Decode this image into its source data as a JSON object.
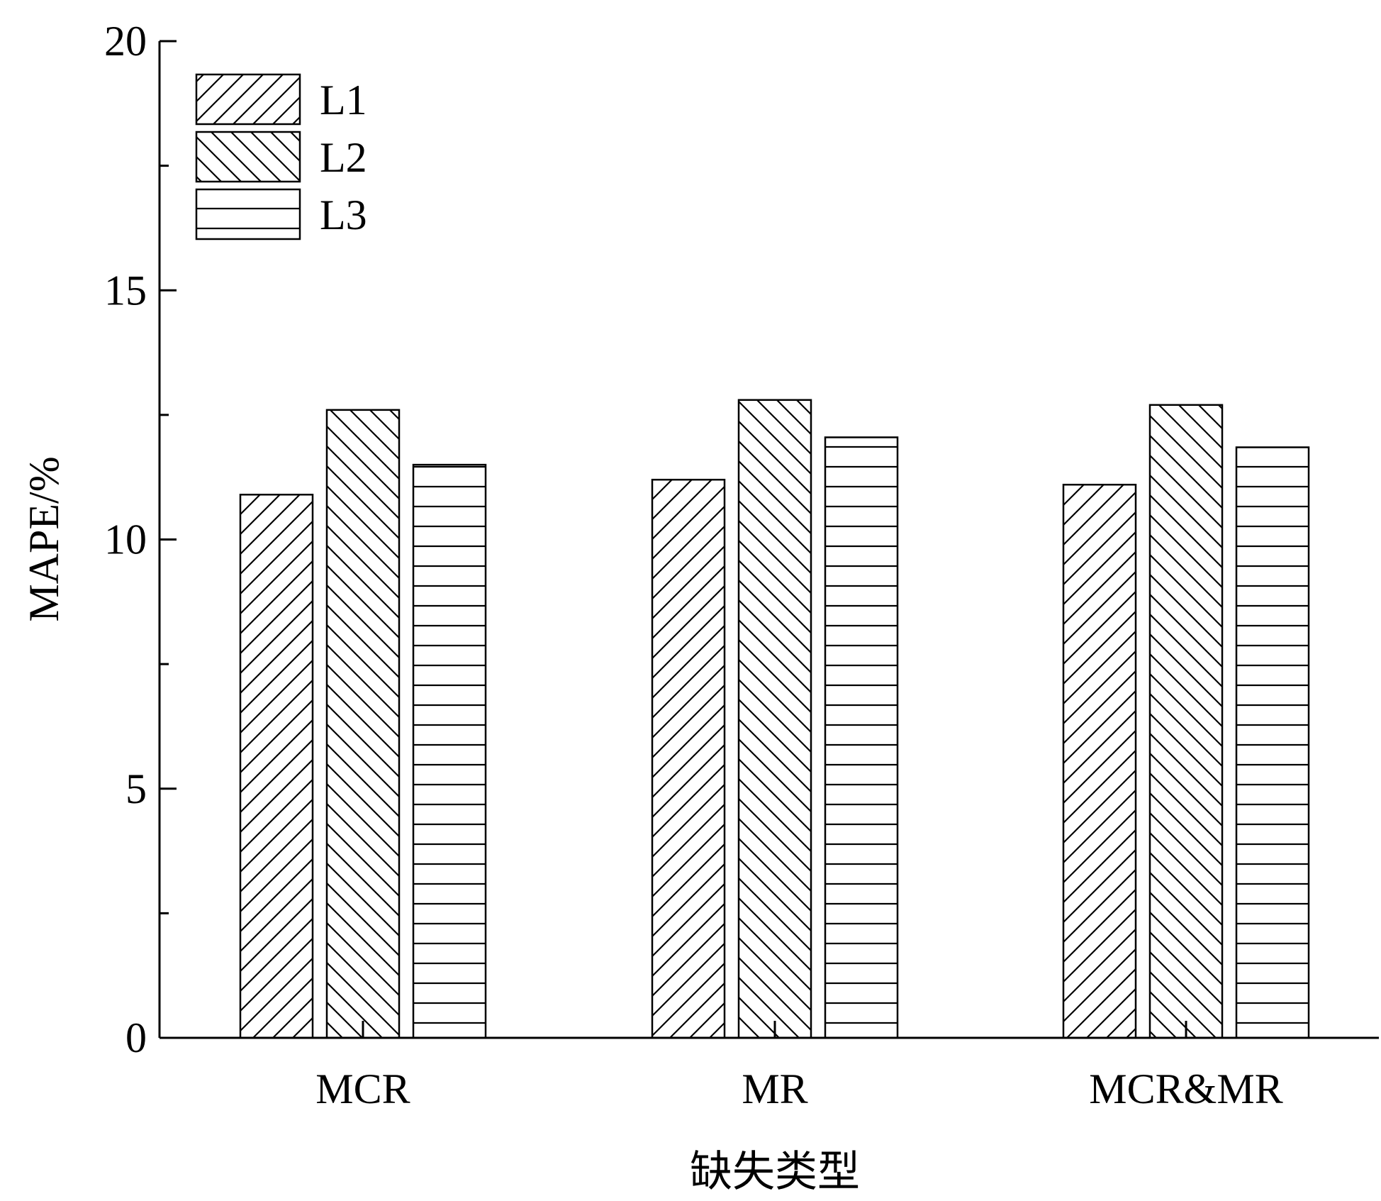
{
  "chart_data": {
    "type": "bar",
    "categories": [
      "MCR",
      "MR",
      "MCR&MR"
    ],
    "series": [
      {
        "name": "L1",
        "values": [
          10.9,
          11.2,
          11.1
        ],
        "pattern": "diagonal-up"
      },
      {
        "name": "L2",
        "values": [
          12.6,
          12.8,
          12.7
        ],
        "pattern": "diagonal-down"
      },
      {
        "name": "L3",
        "values": [
          11.5,
          12.05,
          11.85
        ],
        "pattern": "horizontal"
      }
    ],
    "xlabel": "缺失类型",
    "ylabel": "MAPE/%",
    "ylim": [
      0,
      20
    ],
    "yticks": [
      "0",
      "5",
      "10",
      "15",
      "20"
    ],
    "grid": false,
    "legend_position": "top-left",
    "colors": {
      "stroke": "#000000",
      "fill": "#ffffff"
    }
  }
}
